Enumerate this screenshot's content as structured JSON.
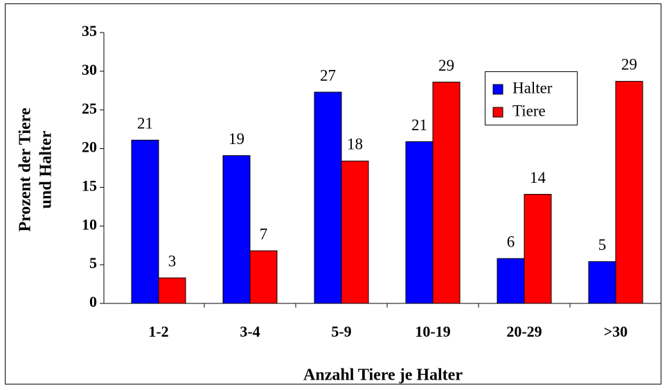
{
  "chart_data": {
    "type": "bar",
    "categories": [
      "1-2",
      "3-4",
      "5-9",
      "10-19",
      "20-29",
      ">30"
    ],
    "series": [
      {
        "name": "Halter",
        "color": "#0000ff",
        "values": [
          21.1,
          19.1,
          27.3,
          20.9,
          5.8,
          5.4
        ],
        "value_labels": [
          "21",
          "19",
          "27",
          "21",
          "6",
          "5"
        ]
      },
      {
        "name": "Tiere",
        "color": "#ff0000",
        "values": [
          3.3,
          6.8,
          18.4,
          28.6,
          14.1,
          28.7
        ],
        "value_labels": [
          "3",
          "7",
          "18",
          "29",
          "14",
          "29"
        ]
      }
    ],
    "xlabel": "Anzahl Tiere je Halter",
    "ylabel": [
      "Prozent der Tiere",
      "und Halter"
    ],
    "ylim": [
      0,
      35
    ],
    "yticks": [
      0,
      5,
      10,
      15,
      20,
      25,
      30,
      35
    ],
    "grid": false
  }
}
